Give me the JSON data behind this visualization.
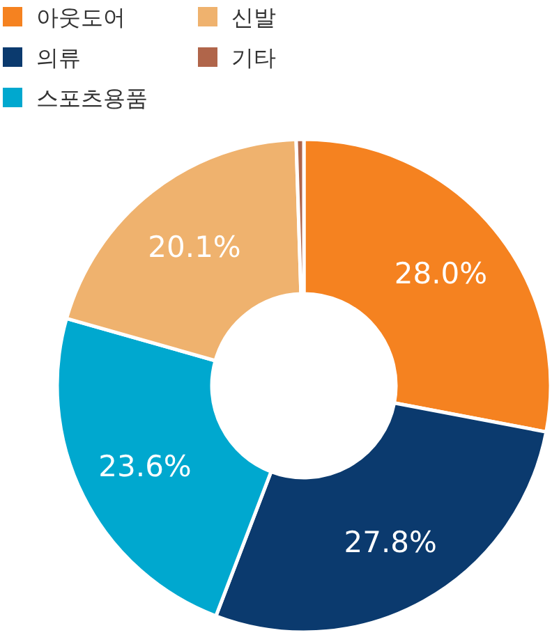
{
  "chart_data": {
    "type": "donut",
    "categories": [
      "아웃도어",
      "의류",
      "스포츠용품",
      "신발",
      "기타"
    ],
    "values": [
      28.0,
      27.8,
      23.6,
      20.1,
      0.5
    ],
    "colors": [
      "#f58220",
      "#0b3a6e",
      "#00a8cf",
      "#efb26e",
      "#b0654a"
    ],
    "value_labels": [
      "28.0%",
      "27.8%",
      "23.6%",
      "20.1%",
      null
    ],
    "legend": "top left"
  }
}
